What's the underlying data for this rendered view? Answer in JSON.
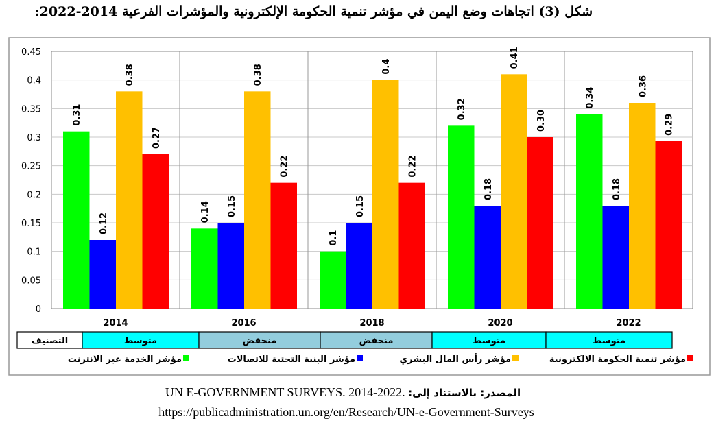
{
  "title": "شكل (3) اتجاهات وضع اليمن في مؤشر تنمية الحكومة الإلكترونية والمؤشرات الفرعية 2014-2022:",
  "source": {
    "label": "المصدر: بالاستناد إلى:",
    "text": "UN E-GOVERNMENT SURVEYS. 2014-2022.",
    "url": "https://publicadministration.un.org/en/Research/UN-e-Government-Surveys"
  },
  "chart_data": {
    "type": "bar",
    "categories": [
      "2014",
      "2016",
      "2018",
      "2020",
      "2022"
    ],
    "ylim": [
      0,
      0.45
    ],
    "yticks": [
      "0",
      "0.05",
      "0.1",
      "0.15",
      "0.2",
      "0.25",
      "0.3",
      "0.35",
      "0.4",
      "0.45"
    ],
    "grid": true,
    "legend_position": "bottom",
    "series": [
      {
        "name": "مؤشر الخدمة عبر الانترنت",
        "color": "#00ff00",
        "values": [
          0.31,
          0.14,
          0.1,
          0.32,
          0.34
        ],
        "labels": [
          "0.31",
          "0.14",
          "0.1",
          "0.32",
          "0.34"
        ]
      },
      {
        "name": "مؤشر البنية التحتية للاتصالات",
        "color": "#0000ff",
        "values": [
          0.12,
          0.15,
          0.15,
          0.18,
          0.18
        ],
        "labels": [
          "0.12",
          "0.15",
          "0.15",
          "0.18",
          "0.18"
        ]
      },
      {
        "name": "مؤشر رأس المال البشري",
        "color": "#ffc000",
        "values": [
          0.38,
          0.38,
          0.4,
          0.41,
          0.36
        ],
        "labels": [
          "0.38",
          "0.38",
          "0.4",
          "0.41",
          "0.36"
        ]
      },
      {
        "name": "مؤشر تنمية الحكومة الالكترونية",
        "color": "#ff0000",
        "values": [
          0.27,
          0.22,
          0.22,
          0.3,
          0.293
        ],
        "labels": [
          "0.27",
          "0.22",
          "0.22",
          "0.30",
          "0.29"
        ]
      }
    ],
    "classification": {
      "header": "التصنيف",
      "values": [
        "متوسط",
        "منخفض",
        "منخفض",
        "متوسط",
        "متوسط"
      ],
      "colors": {
        "متوسط": "#00ffff",
        "منخفض": "#93cddd"
      }
    }
  }
}
